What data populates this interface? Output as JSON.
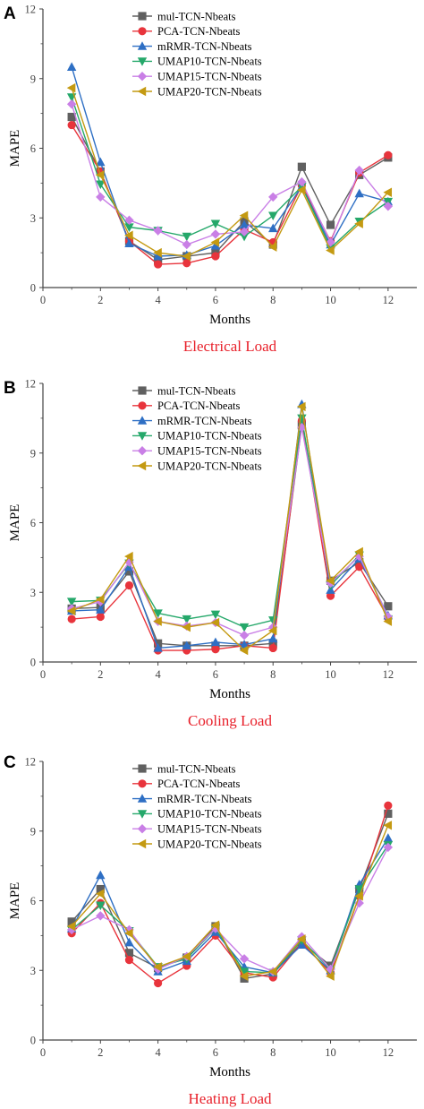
{
  "colors": {
    "axis": "#444444",
    "caption": "#e8202a",
    "series": [
      "#606060",
      "#e8343c",
      "#2e6fc4",
      "#25a86a",
      "#c97fe6",
      "#c49a12"
    ],
    "markers": [
      "square",
      "circle",
      "triangle-up",
      "triangle-down",
      "diamond",
      "triangle-left"
    ]
  },
  "chart_data": [
    {
      "type": "line",
      "panel_label": "A",
      "caption": "Electrical Load",
      "xlabel": "Months",
      "ylabel": "MAPE",
      "xlim": [
        0,
        13
      ],
      "ylim": [
        0,
        12
      ],
      "xticks": [
        0,
        2,
        4,
        6,
        8,
        10,
        12
      ],
      "yticks": [
        0,
        3,
        6,
        9,
        12
      ],
      "legend_position": "top-center",
      "x": [
        1,
        2,
        3,
        4,
        5,
        6,
        7,
        8,
        9,
        10,
        11,
        12
      ],
      "series": [
        {
          "name": "mul-TCN-Nbeats",
          "values": [
            7.35,
            5.0,
            2.0,
            1.2,
            1.35,
            1.5,
            2.85,
            1.85,
            5.2,
            2.7,
            4.85,
            5.6
          ]
        },
        {
          "name": "PCA-TCN-Nbeats",
          "values": [
            7.0,
            5.0,
            2.0,
            1.0,
            1.05,
            1.35,
            2.5,
            1.95,
            4.4,
            2.0,
            4.95,
            5.7
          ]
        },
        {
          "name": "mRMR-TCN-Nbeats",
          "values": [
            9.5,
            5.4,
            1.9,
            1.35,
            1.4,
            1.8,
            2.7,
            2.55,
            4.35,
            1.85,
            4.05,
            3.7
          ]
        },
        {
          "name": "UMAP10-TCN-Nbeats",
          "values": [
            8.2,
            4.45,
            2.6,
            2.45,
            2.2,
            2.75,
            2.2,
            3.1,
            4.35,
            1.7,
            2.85,
            3.7
          ]
        },
        {
          "name": "UMAP15-TCN-Nbeats",
          "values": [
            7.9,
            3.9,
            2.9,
            2.45,
            1.85,
            2.3,
            2.4,
            3.9,
            4.55,
            1.95,
            5.05,
            3.5
          ]
        },
        {
          "name": "UMAP20-TCN-Nbeats",
          "values": [
            8.6,
            4.85,
            2.25,
            1.5,
            1.35,
            1.95,
            3.1,
            1.75,
            4.2,
            1.6,
            2.75,
            4.1
          ]
        }
      ]
    },
    {
      "type": "line",
      "panel_label": "B",
      "caption": "Cooling Load",
      "xlabel": "Months",
      "ylabel": "MAPE",
      "xlim": [
        0,
        13
      ],
      "ylim": [
        0,
        12
      ],
      "xticks": [
        0,
        2,
        4,
        6,
        8,
        10,
        12
      ],
      "yticks": [
        0,
        3,
        6,
        9,
        12
      ],
      "legend_position": "top-center",
      "x": [
        1,
        2,
        3,
        4,
        5,
        6,
        7,
        8,
        9,
        10,
        11,
        12
      ],
      "series": [
        {
          "name": "mul-TCN-Nbeats",
          "values": [
            2.3,
            2.35,
            3.9,
            0.8,
            0.7,
            0.7,
            0.7,
            0.8,
            10.2,
            3.5,
            4.3,
            2.4
          ]
        },
        {
          "name": "PCA-TCN-Nbeats",
          "values": [
            1.85,
            1.95,
            3.3,
            0.5,
            0.5,
            0.55,
            0.7,
            0.6,
            10.4,
            2.85,
            4.1,
            1.9
          ]
        },
        {
          "name": "mRMR-TCN-Nbeats",
          "values": [
            2.2,
            2.25,
            4.1,
            0.6,
            0.7,
            0.85,
            0.75,
            1.0,
            11.1,
            3.1,
            4.45,
            2.0
          ]
        },
        {
          "name": "UMAP10-TCN-Nbeats",
          "values": [
            2.6,
            2.65,
            4.25,
            2.1,
            1.85,
            2.05,
            1.5,
            1.8,
            10.5,
            3.3,
            4.6,
            1.85
          ]
        },
        {
          "name": "UMAP15-TCN-Nbeats",
          "values": [
            2.3,
            2.6,
            4.3,
            1.75,
            1.55,
            1.7,
            1.15,
            1.5,
            10.1,
            3.4,
            4.55,
            1.95
          ]
        },
        {
          "name": "UMAP20-TCN-Nbeats",
          "values": [
            2.2,
            2.7,
            4.55,
            1.75,
            1.5,
            1.7,
            0.5,
            1.35,
            11.0,
            3.5,
            4.75,
            1.75
          ]
        }
      ]
    },
    {
      "type": "line",
      "panel_label": "C",
      "caption": "Heating Load",
      "xlabel": "Months",
      "ylabel": "MAPE",
      "xlim": [
        0,
        13
      ],
      "ylim": [
        0,
        12
      ],
      "xticks": [
        0,
        2,
        4,
        6,
        8,
        10,
        12
      ],
      "yticks": [
        0,
        3,
        6,
        9,
        12
      ],
      "legend_position": "top-center",
      "x": [
        1,
        2,
        3,
        4,
        5,
        6,
        7,
        8,
        9,
        10,
        11,
        12
      ],
      "series": [
        {
          "name": "mul-TCN-Nbeats",
          "values": [
            5.1,
            6.5,
            3.75,
            3.1,
            3.55,
            4.9,
            2.65,
            2.85,
            4.2,
            3.2,
            6.5,
            9.75
          ]
        },
        {
          "name": "PCA-TCN-Nbeats",
          "values": [
            4.6,
            5.9,
            3.45,
            2.45,
            3.2,
            4.5,
            2.9,
            2.7,
            4.2,
            2.9,
            6.2,
            10.1
          ]
        },
        {
          "name": "mRMR-TCN-Nbeats",
          "values": [
            4.8,
            7.1,
            4.2,
            2.95,
            3.4,
            4.65,
            3.15,
            2.9,
            4.1,
            3.0,
            6.7,
            8.7
          ]
        },
        {
          "name": "UMAP10-TCN-Nbeats",
          "values": [
            4.75,
            5.8,
            4.7,
            3.15,
            3.5,
            4.8,
            2.95,
            2.9,
            4.3,
            3.05,
            6.5,
            8.4
          ]
        },
        {
          "name": "UMAP15-TCN-Nbeats",
          "values": [
            4.75,
            5.35,
            4.75,
            3.05,
            3.6,
            4.8,
            3.5,
            2.95,
            4.45,
            3.05,
            5.9,
            8.3
          ]
        },
        {
          "name": "UMAP20-TCN-Nbeats",
          "values": [
            4.9,
            6.3,
            4.6,
            3.15,
            3.6,
            4.95,
            2.75,
            2.95,
            4.35,
            2.75,
            6.2,
            9.25
          ]
        }
      ]
    }
  ]
}
